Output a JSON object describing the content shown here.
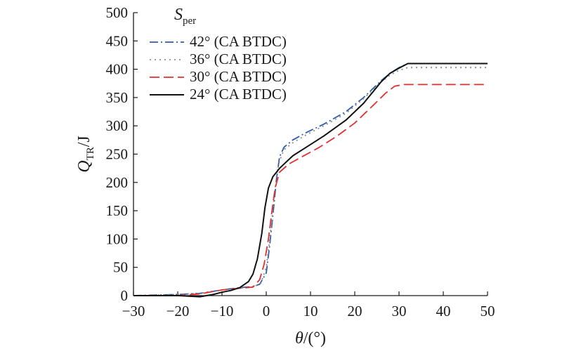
{
  "chart_data": {
    "type": "line",
    "xlabel": {
      "main": "θ",
      "rest": "/(°)"
    },
    "ylabel": {
      "main": "Q",
      "sub": "TR",
      "rest": "/J"
    },
    "xlim": [
      -30,
      50
    ],
    "ylim": [
      0,
      500
    ],
    "xticks": [
      -30,
      -20,
      -10,
      0,
      10,
      20,
      30,
      40,
      50
    ],
    "yticks": [
      0,
      50,
      100,
      150,
      200,
      250,
      300,
      350,
      400,
      450,
      500
    ],
    "grid": false,
    "legend": {
      "position": "top-left",
      "title_main": "S",
      "title_sub": "per"
    },
    "series": [
      {
        "name": "42° (CA BTDC)",
        "color": "#2e5ea8",
        "dash": "dash-dot",
        "points": [
          [
            -30,
            0
          ],
          [
            -25,
            1
          ],
          [
            -20,
            2
          ],
          [
            -15,
            4
          ],
          [
            -10,
            10
          ],
          [
            -6,
            14
          ],
          [
            -3,
            16
          ],
          [
            -1.5,
            20
          ],
          [
            0,
            40
          ],
          [
            0.8,
            90
          ],
          [
            1.6,
            150
          ],
          [
            2.3,
            205
          ],
          [
            3,
            245
          ],
          [
            4,
            262
          ],
          [
            6,
            275
          ],
          [
            9,
            288
          ],
          [
            13,
            303
          ],
          [
            18,
            325
          ],
          [
            22,
            350
          ],
          [
            26,
            380
          ],
          [
            28,
            393
          ],
          [
            30,
            403
          ],
          [
            32,
            410
          ],
          [
            50,
            410
          ]
        ]
      },
      {
        "name": "36° (CA BTDC)",
        "color": "#8c8c8c",
        "dash": "dotted",
        "points": [
          [
            -30,
            0
          ],
          [
            -25,
            1
          ],
          [
            -20,
            2
          ],
          [
            -15,
            4
          ],
          [
            -10,
            10
          ],
          [
            -6,
            13
          ],
          [
            -3,
            15
          ],
          [
            -1.2,
            22
          ],
          [
            0,
            50
          ],
          [
            0.8,
            100
          ],
          [
            1.6,
            160
          ],
          [
            2.3,
            210
          ],
          [
            3,
            238
          ],
          [
            4,
            258
          ],
          [
            6,
            270
          ],
          [
            9,
            284
          ],
          [
            13,
            300
          ],
          [
            18,
            322
          ],
          [
            22,
            348
          ],
          [
            26,
            378
          ],
          [
            28,
            390
          ],
          [
            30,
            398
          ],
          [
            32,
            403
          ],
          [
            50,
            403
          ]
        ]
      },
      {
        "name": "30° (CA BTDC)",
        "color": "#e03030",
        "dash": "dashed",
        "points": [
          [
            -30,
            0
          ],
          [
            -25,
            0
          ],
          [
            -20,
            0
          ],
          [
            -15,
            3
          ],
          [
            -10,
            10
          ],
          [
            -6,
            13
          ],
          [
            -3,
            15
          ],
          [
            -1.5,
            28
          ],
          [
            -0.5,
            55
          ],
          [
            0.5,
            100
          ],
          [
            1.3,
            150
          ],
          [
            2,
            190
          ],
          [
            3,
            218
          ],
          [
            5,
            232
          ],
          [
            8,
            245
          ],
          [
            12,
            262
          ],
          [
            16,
            282
          ],
          [
            20,
            305
          ],
          [
            24,
            335
          ],
          [
            27,
            358
          ],
          [
            29,
            370
          ],
          [
            31,
            373
          ],
          [
            50,
            373
          ]
        ]
      },
      {
        "name": "24° (CA BTDC)",
        "color": "#111111",
        "dash": "solid",
        "points": [
          [
            -30,
            0
          ],
          [
            -25,
            0
          ],
          [
            -20,
            0
          ],
          [
            -15,
            -2
          ],
          [
            -12,
            2
          ],
          [
            -10,
            6
          ],
          [
            -8,
            9
          ],
          [
            -6,
            14
          ],
          [
            -4,
            25
          ],
          [
            -3,
            38
          ],
          [
            -2,
            65
          ],
          [
            -1,
            110
          ],
          [
            -0.3,
            155
          ],
          [
            0.5,
            190
          ],
          [
            1.5,
            210
          ],
          [
            3,
            225
          ],
          [
            6,
            247
          ],
          [
            9,
            262
          ],
          [
            13,
            282
          ],
          [
            18,
            310
          ],
          [
            22,
            340
          ],
          [
            26,
            378
          ],
          [
            28,
            393
          ],
          [
            30,
            402
          ],
          [
            32,
            410
          ],
          [
            50,
            410
          ]
        ]
      }
    ]
  }
}
